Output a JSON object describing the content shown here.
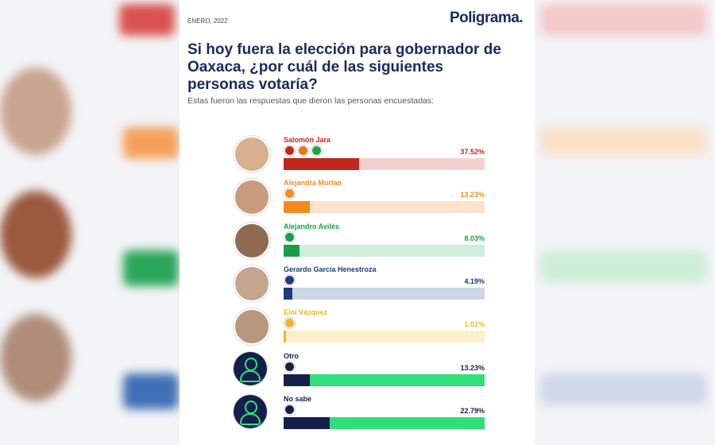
{
  "chart_data": {
    "type": "bar",
    "orientation": "horizontal",
    "date": "ENERO, 2022",
    "brand": "Poligrama.",
    "title": "Si hoy fuera la elección para gobernador de Oaxaca, ¿por cuál de las siguientes personas votaría?",
    "subtitle": "Estas fueron las respuestas que dieron las personas encuestadas:",
    "categories": [
      "Salomón Jara",
      "Alejandra Morlan",
      "Alejandro Avilés",
      "Gerardo García Henestroza",
      "Eloí Vázquez",
      "Otro",
      "No sabe"
    ],
    "values": [
      37.52,
      13.23,
      8.03,
      4.19,
      1.01,
      13.23,
      22.79
    ],
    "value_labels": [
      "37.52%",
      "13.23%",
      "8.03%",
      "4.19%",
      "1.01%",
      "13.23%",
      "22.79%"
    ],
    "colors": [
      "#c0281e",
      "#f28c1e",
      "#1a9e4a",
      "#1d3c7a",
      "#e9b82a",
      "#14204a",
      "#14204a"
    ],
    "track_colors": [
      "#f6d0cf",
      "#fde3cc",
      "#cfeedb",
      "#ccd6e6",
      "#fbf0c8",
      "#2fe07a",
      "#2fe07a"
    ],
    "xlim": [
      0,
      100
    ]
  }
}
